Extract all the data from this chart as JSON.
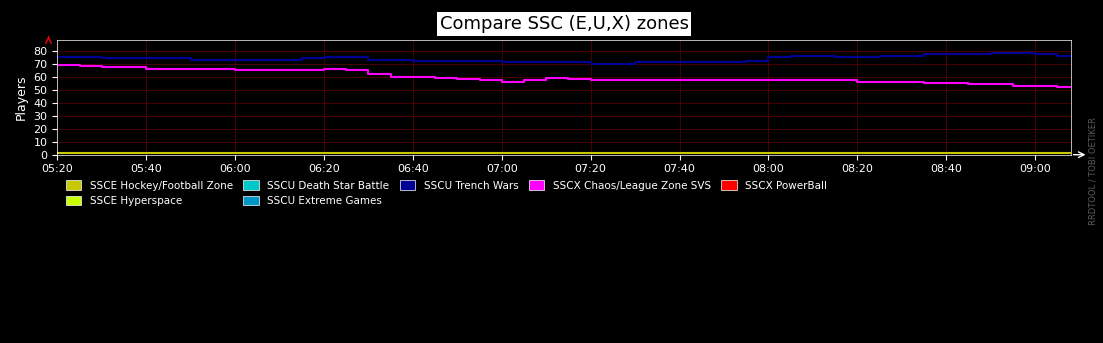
{
  "title": "Compare SSC (E,U,X) zones",
  "xlabel": "",
  "ylabel": "Players",
  "background_color": "#000000",
  "plot_bg_color": "#000000",
  "grid_color": "#8B0000",
  "yticks": [
    0,
    10,
    20,
    30,
    40,
    50,
    60,
    70,
    80
  ],
  "ylim": [
    0,
    88
  ],
  "xlim_start": 320,
  "xlim_end": 548,
  "xtick_labels": [
    "05:20",
    "05:40",
    "06:00",
    "06:20",
    "06:40",
    "07:00",
    "07:20",
    "07:40",
    "08:00",
    "08:20",
    "08:40",
    "09:00"
  ],
  "xtick_positions": [
    320,
    340,
    360,
    380,
    400,
    420,
    440,
    460,
    480,
    500,
    520,
    540
  ],
  "watermark": "RRDTOOL / TOBI OETIKER",
  "legend_entries": [
    {
      "label": "SSCE Hockey/Football Zone",
      "color": "#c8c800"
    },
    {
      "label": "SSCE Hyperspace",
      "color": "#c8ff00"
    },
    {
      "label": "SSCU Death Star Battle",
      "color": "#00c8c8"
    },
    {
      "label": "SSCU Extreme Games",
      "color": "#0096c8"
    },
    {
      "label": "SSCU Trench Wars",
      "color": "#000096"
    },
    {
      "label": "SSCX Chaos/League Zone SVS",
      "color": "#ff00ff"
    },
    {
      "label": "SSCX PowerBall",
      "color": "#ff0000"
    }
  ],
  "blue_line": {
    "color": "#000096",
    "x": [
      320,
      325,
      330,
      335,
      340,
      345,
      350,
      355,
      360,
      365,
      370,
      375,
      380,
      385,
      390,
      395,
      400,
      405,
      410,
      415,
      420,
      425,
      430,
      435,
      440,
      445,
      450,
      455,
      460,
      465,
      470,
      475,
      480,
      485,
      490,
      495,
      500,
      505,
      510,
      515,
      520,
      525,
      530,
      535,
      540,
      545,
      548
    ],
    "y": [
      75,
      75,
      74,
      74,
      74,
      74,
      73,
      73,
      73,
      73,
      73,
      74,
      75,
      75,
      73,
      73,
      72,
      72,
      72,
      72,
      71,
      71,
      71,
      71,
      70,
      70,
      71,
      71,
      71,
      71,
      71,
      72,
      75,
      76,
      76,
      75,
      75,
      76,
      76,
      77,
      77,
      77,
      78,
      78,
      77,
      76,
      76
    ]
  },
  "magenta_line": {
    "color": "#ff00ff",
    "x": [
      320,
      325,
      330,
      335,
      340,
      345,
      350,
      355,
      360,
      365,
      370,
      375,
      380,
      385,
      390,
      395,
      400,
      405,
      410,
      415,
      420,
      425,
      430,
      435,
      440,
      445,
      450,
      455,
      460,
      465,
      470,
      475,
      480,
      485,
      490,
      495,
      500,
      505,
      510,
      515,
      520,
      525,
      530,
      535,
      540,
      545,
      548
    ],
    "y": [
      69,
      68,
      67,
      67,
      66,
      66,
      66,
      66,
      65,
      65,
      65,
      65,
      66,
      65,
      62,
      60,
      60,
      59,
      58,
      57,
      56,
      57,
      59,
      58,
      57,
      57,
      57,
      57,
      57,
      57,
      57,
      57,
      57,
      57,
      57,
      57,
      56,
      56,
      56,
      55,
      55,
      54,
      54,
      53,
      53,
      52,
      52
    ]
  },
  "yellow_line": {
    "color": "#c8c800",
    "x": [
      320,
      548
    ],
    "y": [
      1,
      1
    ]
  }
}
